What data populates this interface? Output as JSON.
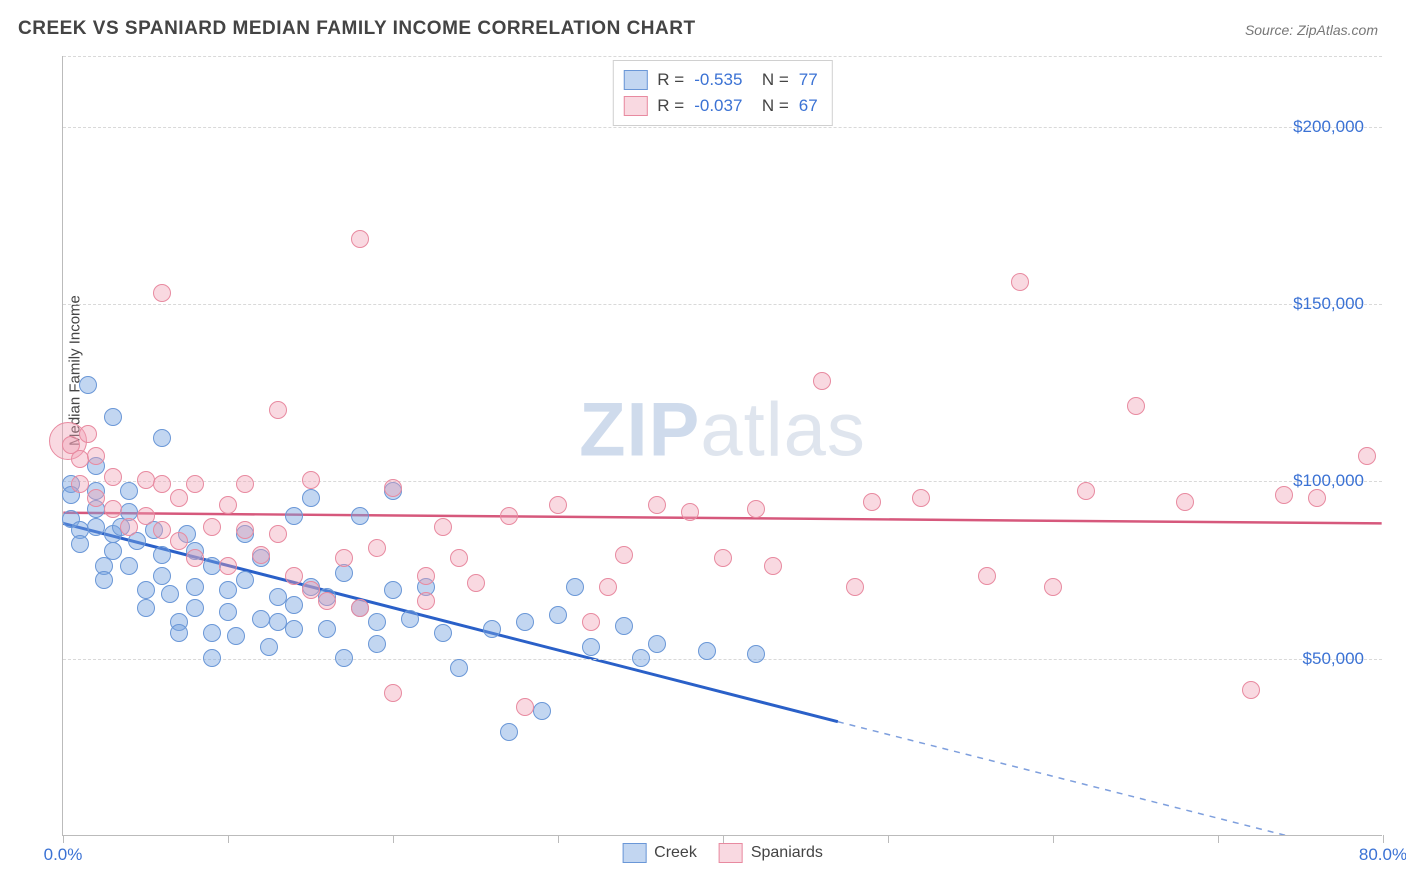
{
  "title": "CREEK VS SPANIARD MEDIAN FAMILY INCOME CORRELATION CHART",
  "source_label": "Source: ZipAtlas.com",
  "watermark_zip": "ZIP",
  "watermark_atlas": "atlas",
  "ylabel": "Median Family Income",
  "chart": {
    "type": "scatter",
    "background_color": "#ffffff",
    "grid_color": "#d9d9d9",
    "axis_color": "#bbbbbb",
    "tick_label_color": "#3b72d4",
    "tick_fontsize": 17,
    "title_fontsize": 19,
    "label_fontsize": 15,
    "xlim": [
      0,
      80
    ],
    "ylim": [
      0,
      220000
    ],
    "xtick_positions": [
      0,
      10,
      20,
      30,
      40,
      50,
      60,
      70,
      80
    ],
    "xtick_labels": {
      "0": "0.0%",
      "80": "80.0%"
    },
    "ytick_positions": [
      50000,
      100000,
      150000,
      200000
    ],
    "ytick_labels": [
      "$50,000",
      "$100,000",
      "$150,000",
      "$200,000"
    ],
    "marker_radius": 8,
    "series": [
      {
        "name": "Creek",
        "color_fill": "rgba(120,165,225,0.45)",
        "color_stroke": "#6a97d7",
        "R": "-0.535",
        "N": "77",
        "trend": {
          "x1": 0,
          "y1": 88000,
          "x2": 47,
          "y2": 32000,
          "stroke": "#2a60c8",
          "width": 3,
          "dash_after_x": 47,
          "x2_dash": 80,
          "y2_dash": -7000
        },
        "points": [
          [
            0.5,
            99000
          ],
          [
            0.5,
            96000
          ],
          [
            0.5,
            89000
          ],
          [
            1,
            86000
          ],
          [
            1,
            82000
          ],
          [
            1.5,
            127000
          ],
          [
            2,
            104000
          ],
          [
            2,
            97000
          ],
          [
            2,
            92000
          ],
          [
            2,
            87000
          ],
          [
            2.5,
            76000
          ],
          [
            2.5,
            72000
          ],
          [
            3,
            118000
          ],
          [
            3,
            85000
          ],
          [
            3,
            80000
          ],
          [
            3.5,
            87000
          ],
          [
            4,
            97000
          ],
          [
            4,
            91000
          ],
          [
            4,
            76000
          ],
          [
            4.5,
            83000
          ],
          [
            5,
            69000
          ],
          [
            5,
            64000
          ],
          [
            5.5,
            86000
          ],
          [
            6,
            112000
          ],
          [
            6,
            79000
          ],
          [
            6,
            73000
          ],
          [
            6.5,
            68000
          ],
          [
            7,
            60000
          ],
          [
            7,
            57000
          ],
          [
            7.5,
            85000
          ],
          [
            8,
            80000
          ],
          [
            8,
            70000
          ],
          [
            8,
            64000
          ],
          [
            9,
            76000
          ],
          [
            9,
            57000
          ],
          [
            9,
            50000
          ],
          [
            10,
            69000
          ],
          [
            10,
            63000
          ],
          [
            10.5,
            56000
          ],
          [
            11,
            85000
          ],
          [
            11,
            72000
          ],
          [
            12,
            61000
          ],
          [
            12,
            78000
          ],
          [
            12.5,
            53000
          ],
          [
            13,
            67000
          ],
          [
            13,
            60000
          ],
          [
            14,
            90000
          ],
          [
            14,
            65000
          ],
          [
            14,
            58000
          ],
          [
            15,
            70000
          ],
          [
            15,
            95000
          ],
          [
            16,
            58000
          ],
          [
            16,
            67000
          ],
          [
            17,
            74000
          ],
          [
            17,
            50000
          ],
          [
            18,
            90000
          ],
          [
            18,
            64000
          ],
          [
            19,
            60000
          ],
          [
            19,
            54000
          ],
          [
            20,
            97000
          ],
          [
            20,
            69000
          ],
          [
            21,
            61000
          ],
          [
            22,
            70000
          ],
          [
            23,
            57000
          ],
          [
            24,
            47000
          ],
          [
            26,
            58000
          ],
          [
            27,
            29000
          ],
          [
            28,
            60000
          ],
          [
            29,
            35000
          ],
          [
            30,
            62000
          ],
          [
            31,
            70000
          ],
          [
            32,
            53000
          ],
          [
            34,
            59000
          ],
          [
            35,
            50000
          ],
          [
            36,
            54000
          ],
          [
            39,
            52000
          ],
          [
            42,
            51000
          ]
        ]
      },
      {
        "name": "Spaniards",
        "color_fill": "rgba(240,160,180,0.40)",
        "color_stroke": "#e88aa0",
        "R": "-0.037",
        "N": "67",
        "trend": {
          "x1": 0,
          "y1": 91000,
          "x2": 80,
          "y2": 88000,
          "stroke": "#d6587c",
          "width": 2.5
        },
        "points": [
          [
            0.3,
            111000,
            18
          ],
          [
            0.5,
            110000
          ],
          [
            1,
            106000
          ],
          [
            1,
            99000
          ],
          [
            1.5,
            113000
          ],
          [
            2,
            107000
          ],
          [
            2,
            95000
          ],
          [
            3,
            92000
          ],
          [
            3,
            101000
          ],
          [
            4,
            87000
          ],
          [
            5,
            100000
          ],
          [
            5,
            90000
          ],
          [
            6,
            153000
          ],
          [
            6,
            99000
          ],
          [
            6,
            86000
          ],
          [
            7,
            95000
          ],
          [
            7,
            83000
          ],
          [
            8,
            99000
          ],
          [
            8,
            78000
          ],
          [
            9,
            87000
          ],
          [
            10,
            93000
          ],
          [
            10,
            76000
          ],
          [
            11,
            99000
          ],
          [
            11,
            86000
          ],
          [
            12,
            79000
          ],
          [
            13,
            120000
          ],
          [
            13,
            85000
          ],
          [
            14,
            73000
          ],
          [
            15,
            100000
          ],
          [
            15,
            69000
          ],
          [
            16,
            66000
          ],
          [
            17,
            78000
          ],
          [
            18,
            168000
          ],
          [
            18,
            64000
          ],
          [
            19,
            81000
          ],
          [
            20,
            40000
          ],
          [
            20,
            98000
          ],
          [
            22,
            73000
          ],
          [
            22,
            66000
          ],
          [
            23,
            87000
          ],
          [
            24,
            78000
          ],
          [
            25,
            71000
          ],
          [
            27,
            90000
          ],
          [
            28,
            36000
          ],
          [
            30,
            93000
          ],
          [
            32,
            60000
          ],
          [
            33,
            70000
          ],
          [
            34,
            79000
          ],
          [
            36,
            93000
          ],
          [
            38,
            91000
          ],
          [
            40,
            78000
          ],
          [
            42,
            92000
          ],
          [
            43,
            76000
          ],
          [
            46,
            128000
          ],
          [
            48,
            70000
          ],
          [
            49,
            94000
          ],
          [
            52,
            95000
          ],
          [
            56,
            73000
          ],
          [
            58,
            156000
          ],
          [
            60,
            70000
          ],
          [
            62,
            97000
          ],
          [
            65,
            121000
          ],
          [
            68,
            94000
          ],
          [
            72,
            41000
          ],
          [
            74,
            96000
          ],
          [
            76,
            95000
          ],
          [
            79,
            107000
          ]
        ]
      }
    ],
    "legend_bottom": [
      {
        "label": "Creek",
        "swatch": "blue"
      },
      {
        "label": "Spaniards",
        "swatch": "pink"
      }
    ]
  }
}
